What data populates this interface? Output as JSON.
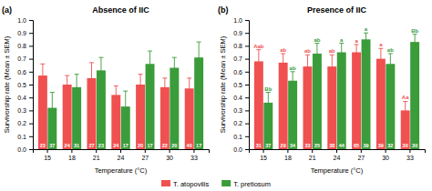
{
  "chart_data": [
    {
      "type": "bar",
      "title": "Absence of IIC",
      "panel_label": "(a)",
      "x_label": "Temperature (°C)",
      "y_label": "Survivorship rate (Mean ± SEM)",
      "categories": [
        "15",
        "18",
        "21",
        "24",
        "27",
        "30",
        "33"
      ],
      "series": [
        {
          "name": "T. atopovilis",
          "color": "#f05050",
          "values": [
            0.57,
            0.5,
            0.55,
            0.42,
            0.5,
            0.48,
            0.47
          ],
          "errors": [
            0.09,
            0.07,
            0.12,
            0.07,
            0.08,
            0.07,
            0.08
          ],
          "n": [
            23,
            24,
            27,
            24,
            20,
            22,
            40
          ]
        },
        {
          "name": "T. pretiosum",
          "color": "#3a9c3a",
          "values": [
            0.32,
            0.48,
            0.61,
            0.33,
            0.66,
            0.63,
            0.71
          ],
          "errors": [
            0.12,
            0.1,
            0.1,
            0.12,
            0.1,
            0.08,
            0.12
          ],
          "n": [
            37,
            31,
            23,
            17,
            17,
            20,
            17
          ]
        }
      ],
      "ylim": [
        0.0,
        1.0
      ],
      "yticks": [
        {
          "value": 0.0,
          "label": "0.0"
        },
        0.1,
        0.2,
        0.3,
        0.4,
        0.5,
        0.6,
        0.7,
        0.8,
        0.9,
        {
          "value": 1.0,
          "label": "1.0"
        }
      ],
      "grid": false,
      "legend": "bottom"
    },
    {
      "type": "bar",
      "title": "Presence of IIC",
      "panel_label": "(b)",
      "x_label": "Temperature (°C)",
      "y_label": "Survivorship rate (Mean ± SEM)",
      "categories": [
        "15",
        "18",
        "21",
        "24",
        "27",
        "30",
        "33"
      ],
      "series": [
        {
          "name": "T. atopovilis",
          "color": "#f05050",
          "values": [
            0.68,
            0.67,
            0.64,
            0.64,
            0.75,
            0.7,
            0.3
          ],
          "errors": [
            0.09,
            0.07,
            0.09,
            0.09,
            0.06,
            0.08,
            0.07
          ],
          "n": [
            31,
            29,
            33,
            38,
            65,
            39,
            30
          ],
          "annotations": [
            "Aab",
            "ab",
            "ab",
            "ab",
            "a",
            "a",
            "Aa"
          ]
        },
        {
          "name": "T. pretiosum",
          "color": "#3a9c3a",
          "values": [
            0.36,
            0.53,
            0.74,
            0.75,
            0.85,
            0.66,
            0.83
          ],
          "errors": [
            0.08,
            0.07,
            0.08,
            0.07,
            0.05,
            0.08,
            0.06
          ],
          "n": [
            37,
            34,
            35,
            44,
            39,
            32,
            30
          ],
          "annotations": [
            "Bb",
            "ab",
            "ab",
            "a",
            "a",
            "ab",
            "Bb"
          ]
        }
      ],
      "ylim": [
        0.0,
        1.0
      ],
      "yticks": [
        {
          "value": 0.0,
          "label": "0.0"
        },
        0.1,
        0.2,
        0.3,
        0.4,
        0.5,
        0.6,
        0.7,
        0.8,
        0.9,
        {
          "value": 1.0,
          "label": "1.0"
        }
      ],
      "grid": false
    }
  ]
}
